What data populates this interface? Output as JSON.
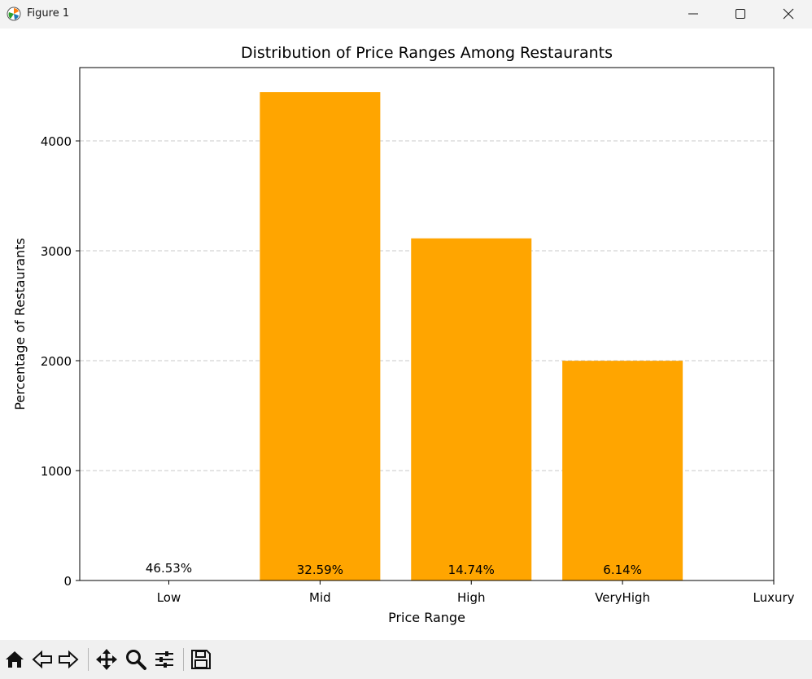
{
  "window": {
    "title": "Figure 1",
    "icons": [
      "matplotlib-app-icon",
      "minimize-icon",
      "maximize-icon",
      "close-icon"
    ]
  },
  "toolbar": {
    "icons": [
      "home-icon",
      "back-icon",
      "forward-icon",
      "pan-icon",
      "zoom-icon",
      "configure-subplots-icon",
      "save-icon"
    ]
  },
  "colors": {
    "bar": "#ffa500",
    "grid": "#c8c8c8",
    "titlebar": "#f3f3f3",
    "toolbar": "#f0f0f0"
  },
  "chart_data": {
    "type": "bar",
    "title": "Distribution of Price Ranges Among Restaurants",
    "xlabel": "Price Range",
    "ylabel": "Percentage of Restaurants",
    "categories": [
      "Low",
      "Mid",
      "High",
      "VeryHigh",
      "Luxury"
    ],
    "bars": [
      {
        "category": "Mid",
        "value": 4444,
        "label": "32.59%"
      },
      {
        "category": "High",
        "value": 3113,
        "label": "14.74%"
      },
      {
        "category": "VeryHigh",
        "value": 1999,
        "label": "6.14%"
      }
    ],
    "annotations": [
      {
        "category": "Low",
        "text": "46.53%"
      }
    ],
    "yticks": [
      0,
      1000,
      2000,
      3000,
      4000
    ],
    "ylim": [
      0,
      4667
    ],
    "grid": "y-dashed"
  }
}
